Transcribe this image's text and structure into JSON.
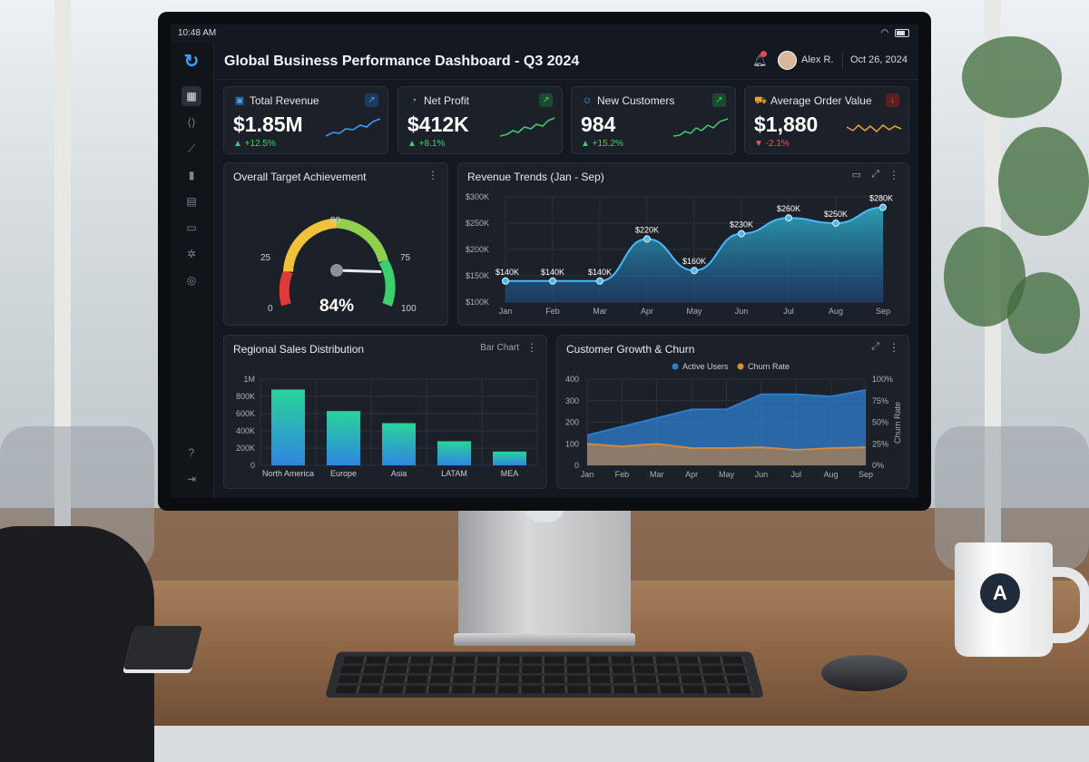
{
  "status": {
    "time": "10:48 AM"
  },
  "header": {
    "title": "Global Business Performance Dashboard - Q3 2024",
    "user_name": "Alex R.",
    "date": "Oct 26, 2024",
    "notification_count": "1"
  },
  "sidebar": {
    "items": [
      {
        "icon": "dashboard-icon",
        "active": true
      },
      {
        "icon": "code-icon"
      },
      {
        "icon": "trend-icon"
      },
      {
        "icon": "bar-chart-icon"
      },
      {
        "icon": "document-icon"
      },
      {
        "icon": "folder-icon"
      },
      {
        "icon": "settings-icon"
      },
      {
        "icon": "network-icon"
      }
    ],
    "bottom": [
      {
        "icon": "help-icon"
      },
      {
        "icon": "logout-icon"
      }
    ]
  },
  "kpis": [
    {
      "title": "Total Revenue",
      "value": "$1.85M",
      "change": "▲ +12.5%",
      "trend": "up",
      "icon": "money-icon",
      "color": "#3aa0ff"
    },
    {
      "title": "Net Profit",
      "value": "$412K",
      "change": "▲ +8.1%",
      "trend": "up",
      "icon": "pie-icon",
      "color": "#3ccf6e"
    },
    {
      "title": "New Customers",
      "value": "984",
      "change": "▲ +15.2%",
      "trend": "up",
      "icon": "users-icon",
      "color": "#3ccf6e"
    },
    {
      "title": "Average Order Value",
      "value": "$1,880",
      "change": "▼ -2.1%",
      "trend": "down",
      "icon": "cart-icon",
      "color": "#f0a13a"
    }
  ],
  "gauge": {
    "title": "Overall Target Achievement",
    "value": "84%",
    "fraction": 0.84,
    "ticks": [
      "0",
      "25",
      "50",
      "75",
      "100"
    ]
  },
  "revenue_trends": {
    "title": "Revenue Trends (Jan - Sep)"
  },
  "regional": {
    "title": "Regional Sales Distribution",
    "view_label": "Bar Chart"
  },
  "growth": {
    "title": "Customer Growth & Churn",
    "y2_label": "Churn Rate"
  },
  "chart_data": [
    {
      "type": "area",
      "title": "Revenue Trends (Jan - Sep)",
      "categories": [
        "Jan",
        "Feb",
        "Mar",
        "Apr",
        "May",
        "Jun",
        "Jul",
        "Aug",
        "Sep"
      ],
      "values": [
        140,
        140,
        140,
        220,
        160,
        230,
        260,
        250,
        280
      ],
      "data_labels": [
        "$140K",
        "$140K",
        "$140K",
        "$220K",
        "$160K",
        "$230K",
        "$260K",
        "$250K",
        "$280K"
      ],
      "ytick_labels": [
        "$300K",
        "$250K",
        "$200K",
        "$150K",
        "$100K"
      ],
      "ylim": [
        100,
        300
      ],
      "grid": true
    },
    {
      "type": "bar",
      "title": "Regional Sales Distribution",
      "categories": [
        "North America",
        "Europe",
        "Asia",
        "LATAM",
        "MEA"
      ],
      "values": [
        880000,
        630000,
        490000,
        280000,
        160000
      ],
      "ytick_labels": [
        "1M",
        "800K",
        "600K",
        "400K",
        "200K",
        "0"
      ],
      "ylim": [
        0,
        1000000
      ],
      "grid": true
    },
    {
      "type": "area",
      "title": "Customer Growth & Churn",
      "categories": [
        "Jan",
        "Feb",
        "Mar",
        "Apr",
        "May",
        "Jun",
        "Jul",
        "Aug",
        "Sep"
      ],
      "series": [
        {
          "name": "Active Users",
          "axis": "left",
          "values": [
            140,
            180,
            220,
            260,
            260,
            330,
            330,
            320,
            350
          ],
          "color": "#2f7fd0"
        },
        {
          "name": "Churn Rate",
          "axis": "right",
          "values": [
            25,
            22,
            25,
            20,
            20,
            21,
            18,
            20,
            21
          ],
          "color": "#e08a34"
        }
      ],
      "ytick_labels": [
        "400",
        "300",
        "200",
        "100",
        "0"
      ],
      "y2tick_labels": [
        "100%",
        "75%",
        "50%",
        "25%",
        "0%"
      ],
      "ylim": [
        0,
        400
      ],
      "y2lim": [
        0,
        100
      ],
      "legend": "top-center",
      "grid": true
    }
  ],
  "colors": {
    "accent": "#3aa0ff",
    "up": "#3ccf6e",
    "down": "#f05454",
    "card": "#1b2029"
  }
}
